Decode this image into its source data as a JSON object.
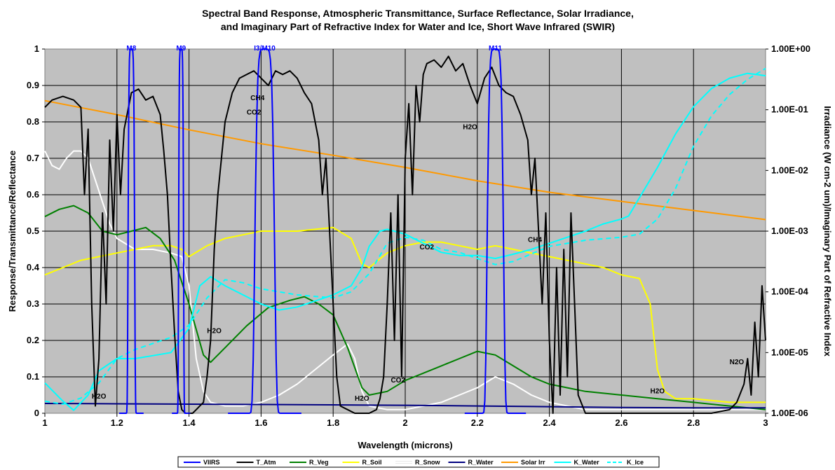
{
  "chart_data": {
    "type": "line",
    "title_line1": "Spectral Band Response, Atmospheric Transmittance, Surface Reflectance, Solar Irradiance,",
    "title_line2": "and Imaginary Part of Refractive Index for Water and Ice, Short Wave Infrared (SWIR)",
    "xlabel": "Wavelength (microns)",
    "ylabel": "Response/Transmittance/Reflectance",
    "y2label": "Irradiance (W cm-2 um)/Imaginary Part of Refractive Index",
    "xlim": [
      1,
      3
    ],
    "ylim": [
      0,
      1
    ],
    "y2lim_log10": [
      -6,
      0
    ],
    "x_ticks": [
      "1",
      "1.2",
      "1.4",
      "1.6",
      "1.8",
      "2",
      "2.2",
      "2.4",
      "2.6",
      "2.8",
      "3"
    ],
    "y_ticks": [
      "0",
      "0.1",
      "0.2",
      "0.3",
      "0.4",
      "0.5",
      "0.6",
      "0.7",
      "0.8",
      "0.9",
      "1"
    ],
    "y2_ticks": [
      "1.00E-06",
      "1.00E-05",
      "1.00E-04",
      "1.00E-03",
      "1.00E-02",
      "1.00E-01",
      "1.00E+00"
    ],
    "grid": true,
    "plot_background": "#c0c0c0",
    "legend_position": "bottom",
    "series": [
      {
        "name": "VIIRS",
        "color": "#0000ff",
        "axis": "left",
        "bands": [
          {
            "center": 1.24,
            "fwhm": 0.02
          },
          {
            "center": 1.378,
            "fwhm": 0.015
          },
          {
            "center": 1.61,
            "fwhm": 0.06
          },
          {
            "center": 2.25,
            "fwhm": 0.05
          }
        ]
      },
      {
        "name": "T_Atm",
        "color": "#000000",
        "axis": "left",
        "x": [
          1.0,
          1.02,
          1.05,
          1.08,
          1.1,
          1.11,
          1.12,
          1.13,
          1.14,
          1.15,
          1.16,
          1.17,
          1.18,
          1.19,
          1.2,
          1.21,
          1.22,
          1.24,
          1.26,
          1.28,
          1.3,
          1.32,
          1.33,
          1.34,
          1.35,
          1.36,
          1.37,
          1.38,
          1.39,
          1.4,
          1.41,
          1.42,
          1.43,
          1.44,
          1.45,
          1.46,
          1.47,
          1.48,
          1.5,
          1.52,
          1.54,
          1.56,
          1.58,
          1.6,
          1.62,
          1.64,
          1.66,
          1.68,
          1.7,
          1.72,
          1.74,
          1.75,
          1.76,
          1.77,
          1.78,
          1.79,
          1.8,
          1.81,
          1.82,
          1.84,
          1.86,
          1.88,
          1.9,
          1.92,
          1.93,
          1.94,
          1.95,
          1.96,
          1.97,
          1.98,
          1.99,
          2.0,
          2.01,
          2.02,
          2.03,
          2.04,
          2.05,
          2.06,
          2.08,
          2.1,
          2.12,
          2.14,
          2.16,
          2.18,
          2.2,
          2.22,
          2.24,
          2.26,
          2.28,
          2.3,
          2.32,
          2.34,
          2.35,
          2.36,
          2.37,
          2.38,
          2.39,
          2.4,
          2.41,
          2.42,
          2.43,
          2.44,
          2.45,
          2.46,
          2.47,
          2.48,
          2.5,
          2.55,
          2.6,
          2.65,
          2.7,
          2.75,
          2.8,
          2.85,
          2.9,
          2.92,
          2.94,
          2.95,
          2.96,
          2.97,
          2.98,
          2.99,
          3.0
        ],
        "y": [
          0.84,
          0.86,
          0.87,
          0.86,
          0.84,
          0.6,
          0.78,
          0.3,
          0.02,
          0.15,
          0.55,
          0.3,
          0.75,
          0.5,
          0.82,
          0.6,
          0.78,
          0.88,
          0.89,
          0.86,
          0.87,
          0.82,
          0.72,
          0.6,
          0.4,
          0.22,
          0.06,
          0.01,
          0.0,
          0.0,
          0.0,
          0.01,
          0.02,
          0.03,
          0.1,
          0.2,
          0.45,
          0.6,
          0.8,
          0.88,
          0.92,
          0.93,
          0.94,
          0.92,
          0.9,
          0.94,
          0.93,
          0.94,
          0.92,
          0.88,
          0.85,
          0.8,
          0.75,
          0.6,
          0.7,
          0.5,
          0.3,
          0.1,
          0.02,
          0.01,
          0.0,
          0.0,
          0.0,
          0.01,
          0.04,
          0.1,
          0.3,
          0.55,
          0.2,
          0.6,
          0.1,
          0.7,
          0.85,
          0.6,
          0.9,
          0.8,
          0.93,
          0.96,
          0.97,
          0.95,
          0.98,
          0.94,
          0.96,
          0.9,
          0.85,
          0.92,
          0.95,
          0.9,
          0.88,
          0.87,
          0.82,
          0.75,
          0.6,
          0.7,
          0.5,
          0.3,
          0.55,
          0.2,
          0.0,
          0.4,
          0.05,
          0.45,
          0.1,
          0.55,
          0.3,
          0.05,
          0.0,
          0.0,
          0.0,
          0.0,
          0.0,
          0.0,
          0.0,
          0.0,
          0.01,
          0.03,
          0.08,
          0.15,
          0.05,
          0.25,
          0.1,
          0.35,
          0.2
        ]
      },
      {
        "name": "R_Veg",
        "color": "#008000",
        "axis": "left",
        "x": [
          1.0,
          1.04,
          1.08,
          1.12,
          1.16,
          1.2,
          1.24,
          1.28,
          1.32,
          1.36,
          1.4,
          1.44,
          1.46,
          1.5,
          1.56,
          1.62,
          1.68,
          1.72,
          1.76,
          1.8,
          1.84,
          1.88,
          1.9,
          1.95,
          2.0,
          2.05,
          2.1,
          2.15,
          2.2,
          2.25,
          2.3,
          2.35,
          2.4,
          2.45,
          2.5,
          2.6,
          2.7,
          2.8,
          2.9,
          3.0
        ],
        "y": [
          0.54,
          0.56,
          0.57,
          0.55,
          0.5,
          0.49,
          0.5,
          0.51,
          0.48,
          0.42,
          0.3,
          0.16,
          0.14,
          0.18,
          0.24,
          0.29,
          0.31,
          0.32,
          0.3,
          0.27,
          0.18,
          0.07,
          0.05,
          0.06,
          0.09,
          0.11,
          0.13,
          0.15,
          0.17,
          0.16,
          0.13,
          0.1,
          0.08,
          0.07,
          0.06,
          0.05,
          0.04,
          0.03,
          0.02,
          0.01
        ]
      },
      {
        "name": "R_Soil",
        "color": "#ffff00",
        "axis": "left",
        "x": [
          1.0,
          1.05,
          1.1,
          1.15,
          1.2,
          1.25,
          1.3,
          1.35,
          1.38,
          1.4,
          1.45,
          1.5,
          1.55,
          1.6,
          1.7,
          1.8,
          1.85,
          1.88,
          1.9,
          1.95,
          2.0,
          2.05,
          2.1,
          2.15,
          2.2,
          2.25,
          2.3,
          2.35,
          2.4,
          2.45,
          2.5,
          2.55,
          2.6,
          2.65,
          2.68,
          2.7,
          2.72,
          2.75,
          2.8,
          2.85,
          2.9,
          3.0
        ],
        "y": [
          0.38,
          0.4,
          0.42,
          0.43,
          0.44,
          0.45,
          0.46,
          0.46,
          0.45,
          0.43,
          0.46,
          0.48,
          0.49,
          0.5,
          0.5,
          0.51,
          0.48,
          0.41,
          0.4,
          0.44,
          0.46,
          0.47,
          0.47,
          0.46,
          0.45,
          0.46,
          0.45,
          0.44,
          0.43,
          0.42,
          0.41,
          0.4,
          0.38,
          0.37,
          0.3,
          0.12,
          0.06,
          0.04,
          0.04,
          0.035,
          0.03,
          0.03
        ]
      },
      {
        "name": "R_Snow",
        "color": "#ffffff",
        "axis": "left",
        "x": [
          1.0,
          1.02,
          1.04,
          1.06,
          1.08,
          1.1,
          1.12,
          1.14,
          1.16,
          1.18,
          1.2,
          1.25,
          1.3,
          1.35,
          1.38,
          1.4,
          1.42,
          1.44,
          1.46,
          1.5,
          1.55,
          1.6,
          1.65,
          1.7,
          1.75,
          1.8,
          1.84,
          1.86,
          1.88,
          1.9,
          1.95,
          2.0,
          2.05,
          2.1,
          2.15,
          2.2,
          2.25,
          2.3,
          2.35,
          2.4,
          2.45,
          2.5,
          2.6,
          2.7,
          2.8,
          2.9,
          3.0
        ],
        "y": [
          0.72,
          0.68,
          0.67,
          0.7,
          0.72,
          0.72,
          0.7,
          0.64,
          0.58,
          0.52,
          0.48,
          0.45,
          0.45,
          0.44,
          0.43,
          0.35,
          0.15,
          0.06,
          0.03,
          0.02,
          0.02,
          0.03,
          0.05,
          0.08,
          0.12,
          0.16,
          0.19,
          0.15,
          0.06,
          0.02,
          0.01,
          0.01,
          0.02,
          0.03,
          0.05,
          0.07,
          0.1,
          0.08,
          0.05,
          0.03,
          0.02,
          0.01,
          0.01,
          0.01,
          0.01,
          0.01,
          0.01
        ]
      },
      {
        "name": "R_Water",
        "color": "#000080",
        "axis": "left",
        "x": [
          1.0,
          1.2,
          1.4,
          1.6,
          1.8,
          2.0,
          2.2,
          2.4,
          2.6,
          2.8,
          3.0
        ],
        "y": [
          0.027,
          0.026,
          0.025,
          0.024,
          0.023,
          0.022,
          0.02,
          0.018,
          0.016,
          0.015,
          0.015
        ]
      },
      {
        "name": "Solar Irr",
        "color": "#ff9900",
        "axis": "right",
        "x": [
          1.0,
          1.2,
          1.4,
          1.6,
          1.8,
          2.0,
          2.2,
          2.4,
          2.6,
          2.8,
          3.0
        ],
        "log10_y": [
          -0.85,
          -1.08,
          -1.33,
          -1.56,
          -1.75,
          -1.95,
          -2.17,
          -2.36,
          -2.51,
          -2.66,
          -2.81
        ]
      },
      {
        "name": "K_Water",
        "color": "#00ffff",
        "axis": "right",
        "x": [
          1.0,
          1.05,
          1.08,
          1.12,
          1.15,
          1.2,
          1.25,
          1.3,
          1.35,
          1.4,
          1.43,
          1.46,
          1.5,
          1.55,
          1.6,
          1.65,
          1.7,
          1.75,
          1.8,
          1.85,
          1.88,
          1.9,
          1.93,
          1.95,
          2.0,
          2.05,
          2.1,
          2.15,
          2.2,
          2.25,
          2.3,
          2.35,
          2.4,
          2.45,
          2.5,
          2.55,
          2.6,
          2.62,
          2.65,
          2.7,
          2.75,
          2.8,
          2.85,
          2.9,
          2.95,
          3.0
        ],
        "log10_y": [
          -5.5,
          -5.8,
          -5.95,
          -5.7,
          -5.3,
          -5.1,
          -5.1,
          -5.05,
          -5.0,
          -4.6,
          -3.9,
          -3.75,
          -3.9,
          -4.05,
          -4.2,
          -4.3,
          -4.25,
          -4.15,
          -4.05,
          -3.9,
          -3.6,
          -3.25,
          -3.0,
          -2.97,
          -3.05,
          -3.2,
          -3.35,
          -3.4,
          -3.4,
          -3.45,
          -3.38,
          -3.3,
          -3.2,
          -3.1,
          -3.0,
          -2.88,
          -2.8,
          -2.75,
          -2.45,
          -1.95,
          -1.4,
          -0.95,
          -0.65,
          -0.48,
          -0.4,
          -0.44
        ]
      },
      {
        "name": "K_Ice",
        "color": "#00ffff",
        "dashed": true,
        "axis": "right",
        "x": [
          1.0,
          1.05,
          1.1,
          1.15,
          1.2,
          1.25,
          1.3,
          1.35,
          1.4,
          1.45,
          1.5,
          1.55,
          1.6,
          1.7,
          1.8,
          1.85,
          1.9,
          1.95,
          2.0,
          2.05,
          2.1,
          2.15,
          2.2,
          2.25,
          2.3,
          2.4,
          2.5,
          2.6,
          2.65,
          2.7,
          2.75,
          2.8,
          2.85,
          2.9,
          2.95,
          3.0
        ],
        "log10_y": [
          -5.8,
          -5.85,
          -5.75,
          -5.5,
          -5.1,
          -4.95,
          -4.85,
          -4.75,
          -4.55,
          -4.1,
          -3.8,
          -3.85,
          -3.95,
          -4.05,
          -4.1,
          -4.0,
          -3.7,
          -3.2,
          -3.1,
          -3.15,
          -3.3,
          -3.35,
          -3.45,
          -3.55,
          -3.5,
          -3.25,
          -3.15,
          -3.1,
          -3.05,
          -2.8,
          -2.3,
          -1.6,
          -1.1,
          -0.75,
          -0.5,
          -0.32
        ]
      }
    ],
    "band_labels": [
      {
        "text": "M8",
        "x": 1.24
      },
      {
        "text": "M9",
        "x": 1.378
      },
      {
        "text": "I3/M10",
        "x": 1.61
      },
      {
        "text": "M11",
        "x": 2.25
      }
    ],
    "annotations": [
      {
        "text": "H2O",
        "x": 1.15,
        "y": 0.04
      },
      {
        "text": "H2O",
        "x": 1.47,
        "y": 0.22
      },
      {
        "text": "CH4",
        "x": 1.59,
        "y": 0.86
      },
      {
        "text": "CO2",
        "x": 1.58,
        "y": 0.82
      },
      {
        "text": "H2O",
        "x": 1.88,
        "y": 0.035
      },
      {
        "text": "CO2",
        "x": 1.98,
        "y": 0.085
      },
      {
        "text": "CO2",
        "x": 2.06,
        "y": 0.45
      },
      {
        "text": "H2O",
        "x": 2.18,
        "y": 0.78
      },
      {
        "text": "CH4",
        "x": 2.36,
        "y": 0.47
      },
      {
        "text": "H2O",
        "x": 2.7,
        "y": 0.055
      },
      {
        "text": "N2O",
        "x": 2.92,
        "y": 0.135
      }
    ]
  }
}
